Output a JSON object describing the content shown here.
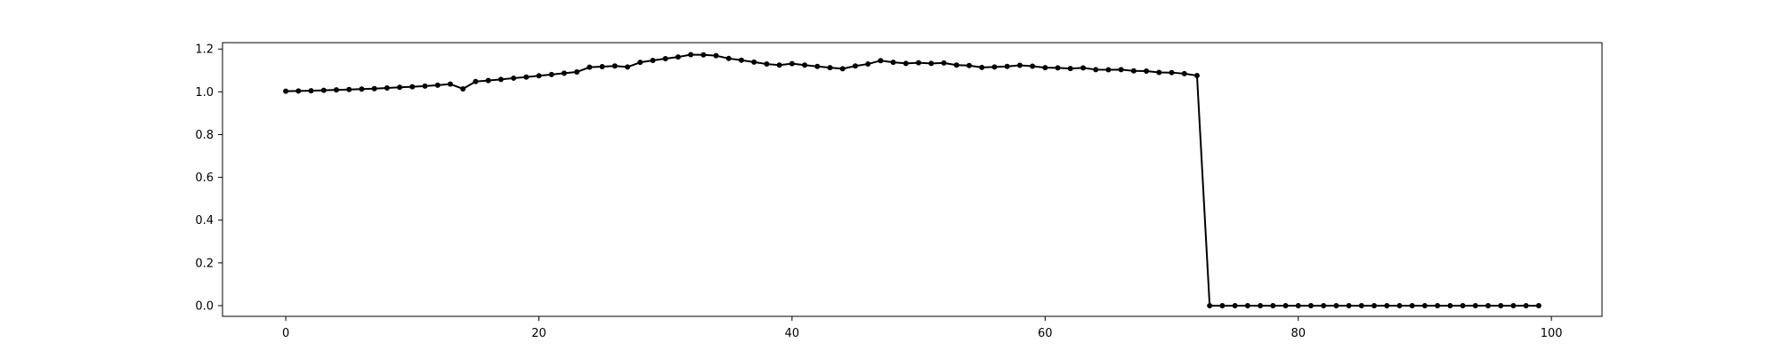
{
  "chart_data": {
    "type": "line",
    "title": "",
    "xlabel": "",
    "ylabel": "",
    "xlim": [
      -5,
      104
    ],
    "ylim": [
      -0.05,
      1.23
    ],
    "grid": false,
    "legend": null,
    "xticks": [
      0,
      20,
      40,
      60,
      80,
      100
    ],
    "xtick_labels": [
      "0",
      "20",
      "40",
      "60",
      "80",
      "100"
    ],
    "yticks": [
      0.0,
      0.2,
      0.4,
      0.6,
      0.8,
      1.0,
      1.2
    ],
    "ytick_labels": [
      "0.0",
      "0.2",
      "0.4",
      "0.6",
      "0.8",
      "1.0",
      "1.2"
    ],
    "series": [
      {
        "color": "#000000",
        "marker": "circle",
        "x": [
          0,
          1,
          2,
          3,
          4,
          5,
          6,
          7,
          8,
          9,
          10,
          11,
          12,
          13,
          14,
          15,
          16,
          17,
          18,
          19,
          20,
          21,
          22,
          23,
          24,
          25,
          26,
          27,
          28,
          29,
          30,
          31,
          32,
          33,
          34,
          35,
          36,
          37,
          38,
          39,
          40,
          41,
          42,
          43,
          44,
          45,
          46,
          47,
          48,
          49,
          50,
          51,
          52,
          53,
          54,
          55,
          56,
          57,
          58,
          59,
          60,
          61,
          62,
          63,
          64,
          65,
          66,
          67,
          68,
          69,
          70,
          71,
          72,
          73,
          74,
          75,
          76,
          77,
          78,
          79,
          80,
          81,
          82,
          83,
          84,
          85,
          86,
          87,
          88,
          89,
          90,
          91,
          92,
          93,
          94,
          95,
          96,
          97,
          98,
          99
        ],
        "y": [
          1.003,
          1.004,
          1.005,
          1.007,
          1.009,
          1.011,
          1.013,
          1.015,
          1.018,
          1.021,
          1.024,
          1.027,
          1.031,
          1.036,
          1.014,
          1.048,
          1.053,
          1.058,
          1.064,
          1.069,
          1.075,
          1.081,
          1.087,
          1.093,
          1.115,
          1.118,
          1.121,
          1.116,
          1.138,
          1.147,
          1.155,
          1.163,
          1.174,
          1.173,
          1.169,
          1.156,
          1.148,
          1.139,
          1.13,
          1.125,
          1.132,
          1.125,
          1.119,
          1.113,
          1.108,
          1.121,
          1.13,
          1.146,
          1.138,
          1.133,
          1.136,
          1.133,
          1.135,
          1.125,
          1.123,
          1.114,
          1.116,
          1.119,
          1.124,
          1.12,
          1.113,
          1.112,
          1.109,
          1.112,
          1.104,
          1.103,
          1.104,
          1.098,
          1.097,
          1.091,
          1.09,
          1.085,
          1.076,
          0.0,
          0.0,
          0.0,
          0.0,
          0.0,
          0.0,
          0.0,
          0.0,
          0.0,
          0.0,
          0.0,
          0.0,
          0.0,
          0.0,
          0.0,
          0.0,
          0.0,
          0.0,
          0.0,
          0.0,
          0.0,
          0.0,
          0.0,
          0.0,
          0.0,
          0.0,
          0.0
        ]
      }
    ]
  }
}
